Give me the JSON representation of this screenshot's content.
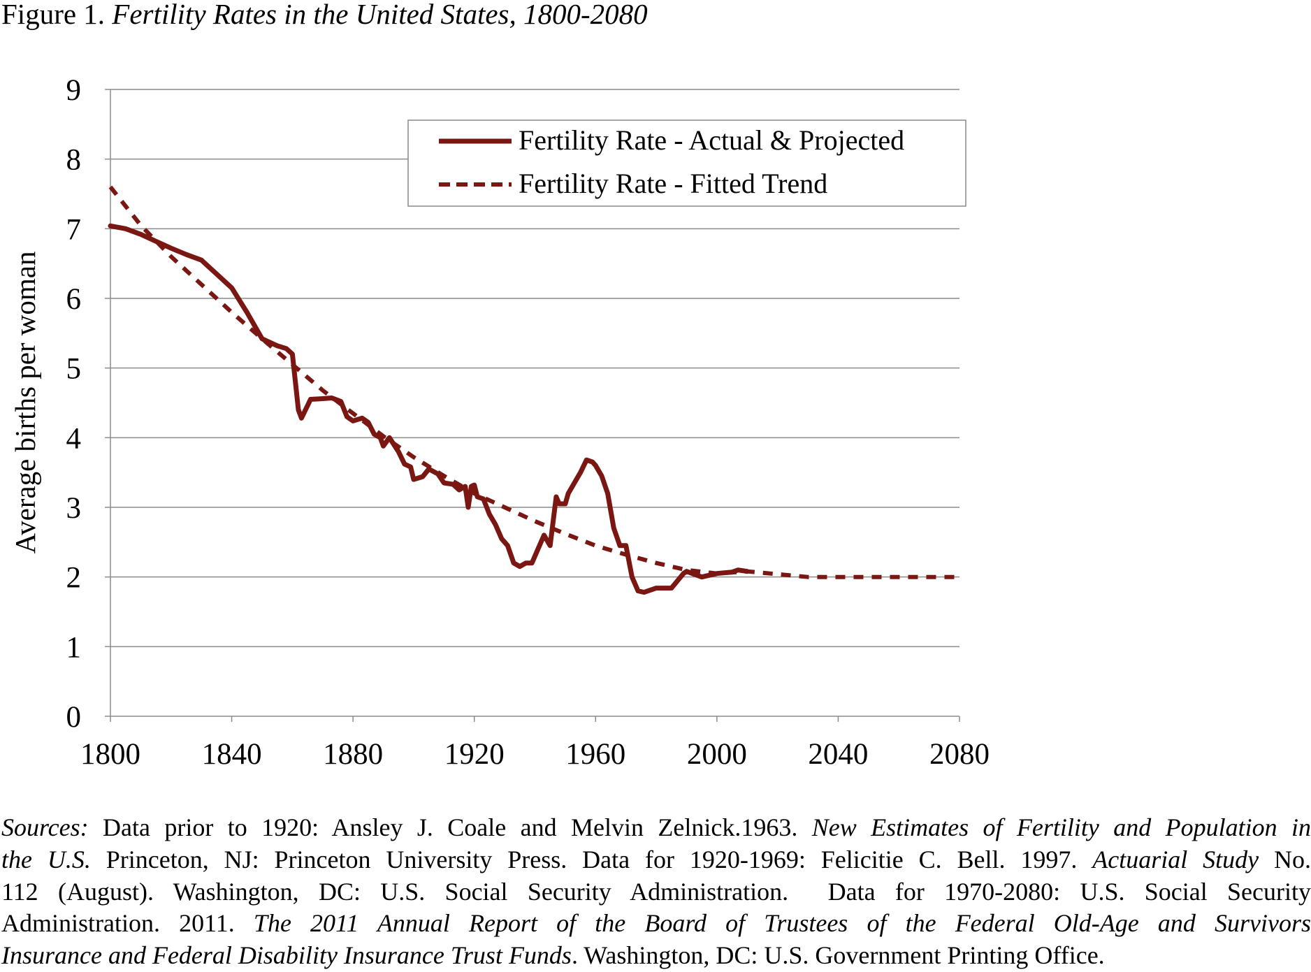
{
  "figure": {
    "label": "Figure 1.",
    "title": "Fertility Rates in the United States, 1800-2080"
  },
  "chart_data": {
    "type": "line",
    "title": "Fertility Rates in the United States, 1800-2080",
    "xlabel": "",
    "ylabel": "Average births per woman",
    "xlim": [
      1800,
      2080
    ],
    "ylim": [
      0,
      9
    ],
    "x_ticks": [
      "1800",
      "1840",
      "1880",
      "1920",
      "1960",
      "2000",
      "2040",
      "2080"
    ],
    "y_ticks": [
      "0",
      "1",
      "2",
      "3",
      "4",
      "5",
      "6",
      "7",
      "8",
      "9"
    ],
    "grid": "horizontal",
    "legend_position": "top-right",
    "color": "#7a1712",
    "series": [
      {
        "name": "Fertility Rate - Actual & Projected",
        "style": "solid",
        "points": [
          [
            1800,
            7.04
          ],
          [
            1805,
            7.0
          ],
          [
            1810,
            6.92
          ],
          [
            1815,
            6.82
          ],
          [
            1820,
            6.72
          ],
          [
            1825,
            6.63
          ],
          [
            1830,
            6.55
          ],
          [
            1835,
            6.35
          ],
          [
            1840,
            6.15
          ],
          [
            1845,
            5.8
          ],
          [
            1850,
            5.42
          ],
          [
            1855,
            5.32
          ],
          [
            1858,
            5.28
          ],
          [
            1860,
            5.2
          ],
          [
            1862,
            4.4
          ],
          [
            1863,
            4.28
          ],
          [
            1866,
            4.55
          ],
          [
            1870,
            4.56
          ],
          [
            1873,
            4.57
          ],
          [
            1876,
            4.52
          ],
          [
            1878,
            4.3
          ],
          [
            1880,
            4.24
          ],
          [
            1883,
            4.28
          ],
          [
            1885,
            4.22
          ],
          [
            1887,
            4.05
          ],
          [
            1889,
            4.0
          ],
          [
            1890,
            3.88
          ],
          [
            1892,
            4.0
          ],
          [
            1895,
            3.8
          ],
          [
            1897,
            3.62
          ],
          [
            1899,
            3.58
          ],
          [
            1900,
            3.4
          ],
          [
            1903,
            3.44
          ],
          [
            1905,
            3.55
          ],
          [
            1908,
            3.48
          ],
          [
            1910,
            3.35
          ],
          [
            1913,
            3.33
          ],
          [
            1915,
            3.25
          ],
          [
            1917,
            3.3
          ],
          [
            1918,
            3.0
          ],
          [
            1919,
            3.3
          ],
          [
            1920,
            3.32
          ],
          [
            1921,
            3.15
          ],
          [
            1923,
            3.12
          ],
          [
            1925,
            2.9
          ],
          [
            1927,
            2.75
          ],
          [
            1929,
            2.55
          ],
          [
            1931,
            2.45
          ],
          [
            1933,
            2.2
          ],
          [
            1935,
            2.15
          ],
          [
            1937,
            2.2
          ],
          [
            1939,
            2.2
          ],
          [
            1941,
            2.4
          ],
          [
            1943,
            2.6
          ],
          [
            1945,
            2.45
          ],
          [
            1947,
            3.15
          ],
          [
            1948,
            3.05
          ],
          [
            1950,
            3.05
          ],
          [
            1951,
            3.2
          ],
          [
            1953,
            3.35
          ],
          [
            1955,
            3.5
          ],
          [
            1957,
            3.68
          ],
          [
            1959,
            3.65
          ],
          [
            1960,
            3.6
          ],
          [
            1962,
            3.45
          ],
          [
            1964,
            3.2
          ],
          [
            1966,
            2.7
          ],
          [
            1968,
            2.45
          ],
          [
            1970,
            2.45
          ],
          [
            1972,
            2.0
          ],
          [
            1974,
            1.8
          ],
          [
            1976,
            1.78
          ],
          [
            1980,
            1.84
          ],
          [
            1985,
            1.84
          ],
          [
            1989,
            2.05
          ],
          [
            1990,
            2.08
          ],
          [
            1995,
            2.0
          ],
          [
            2000,
            2.05
          ],
          [
            2005,
            2.07
          ],
          [
            2007,
            2.1
          ],
          [
            2010,
            2.08
          ]
        ]
      },
      {
        "name": "Fertility Rate - Fitted Trend",
        "style": "dashed",
        "points": [
          [
            1800,
            7.6
          ],
          [
            1810,
            7.05
          ],
          [
            1820,
            6.6
          ],
          [
            1830,
            6.2
          ],
          [
            1840,
            5.8
          ],
          [
            1850,
            5.42
          ],
          [
            1860,
            5.05
          ],
          [
            1870,
            4.68
          ],
          [
            1880,
            4.35
          ],
          [
            1890,
            4.02
          ],
          [
            1900,
            3.72
          ],
          [
            1910,
            3.45
          ],
          [
            1920,
            3.2
          ],
          [
            1930,
            3.0
          ],
          [
            1940,
            2.8
          ],
          [
            1950,
            2.62
          ],
          [
            1960,
            2.45
          ],
          [
            1970,
            2.32
          ],
          [
            1980,
            2.2
          ],
          [
            1990,
            2.1
          ],
          [
            2000,
            2.05
          ],
          [
            2010,
            2.08
          ],
          [
            2020,
            2.04
          ],
          [
            2030,
            2.0
          ],
          [
            2040,
            2.0
          ],
          [
            2060,
            2.0
          ],
          [
            2080,
            2.0
          ]
        ]
      }
    ]
  },
  "sources": {
    "lines": [
      [
        {
          "text": "Sources:",
          "italic": true
        },
        {
          "text": " Data prior to 1920: Ansley J. Coale and Melvin Zelnick.1963. ",
          "italic": false
        },
        {
          "text": "New Estimates of Fertility and Population in",
          "italic": true
        }
      ],
      [
        {
          "text": "the U.S.",
          "italic": true
        },
        {
          "text": " Princeton, NJ: Princeton University Press. Data for 1920-1969: Felicitie C. Bell. 1997. ",
          "italic": false
        },
        {
          "text": "Actuarial Study",
          "italic": true
        },
        {
          "text": " No.",
          "italic": false
        }
      ],
      [
        {
          "text": "112 (August). Washington, DC: U.S. Social Security Administration.  Data for 1970-2080: U.S. Social Security",
          "italic": false
        }
      ],
      [
        {
          "text": "Administration. 2011. ",
          "italic": false
        },
        {
          "text": "The 2011 Annual Report of the Board of Trustees of the Federal Old-Age and Survivors",
          "italic": true
        }
      ],
      [
        {
          "text": "Insurance and Federal Disability Insurance Trust Funds",
          "italic": true
        },
        {
          "text": ". Washington, DC: U.S. Government Printing Office.",
          "italic": false
        }
      ]
    ]
  }
}
